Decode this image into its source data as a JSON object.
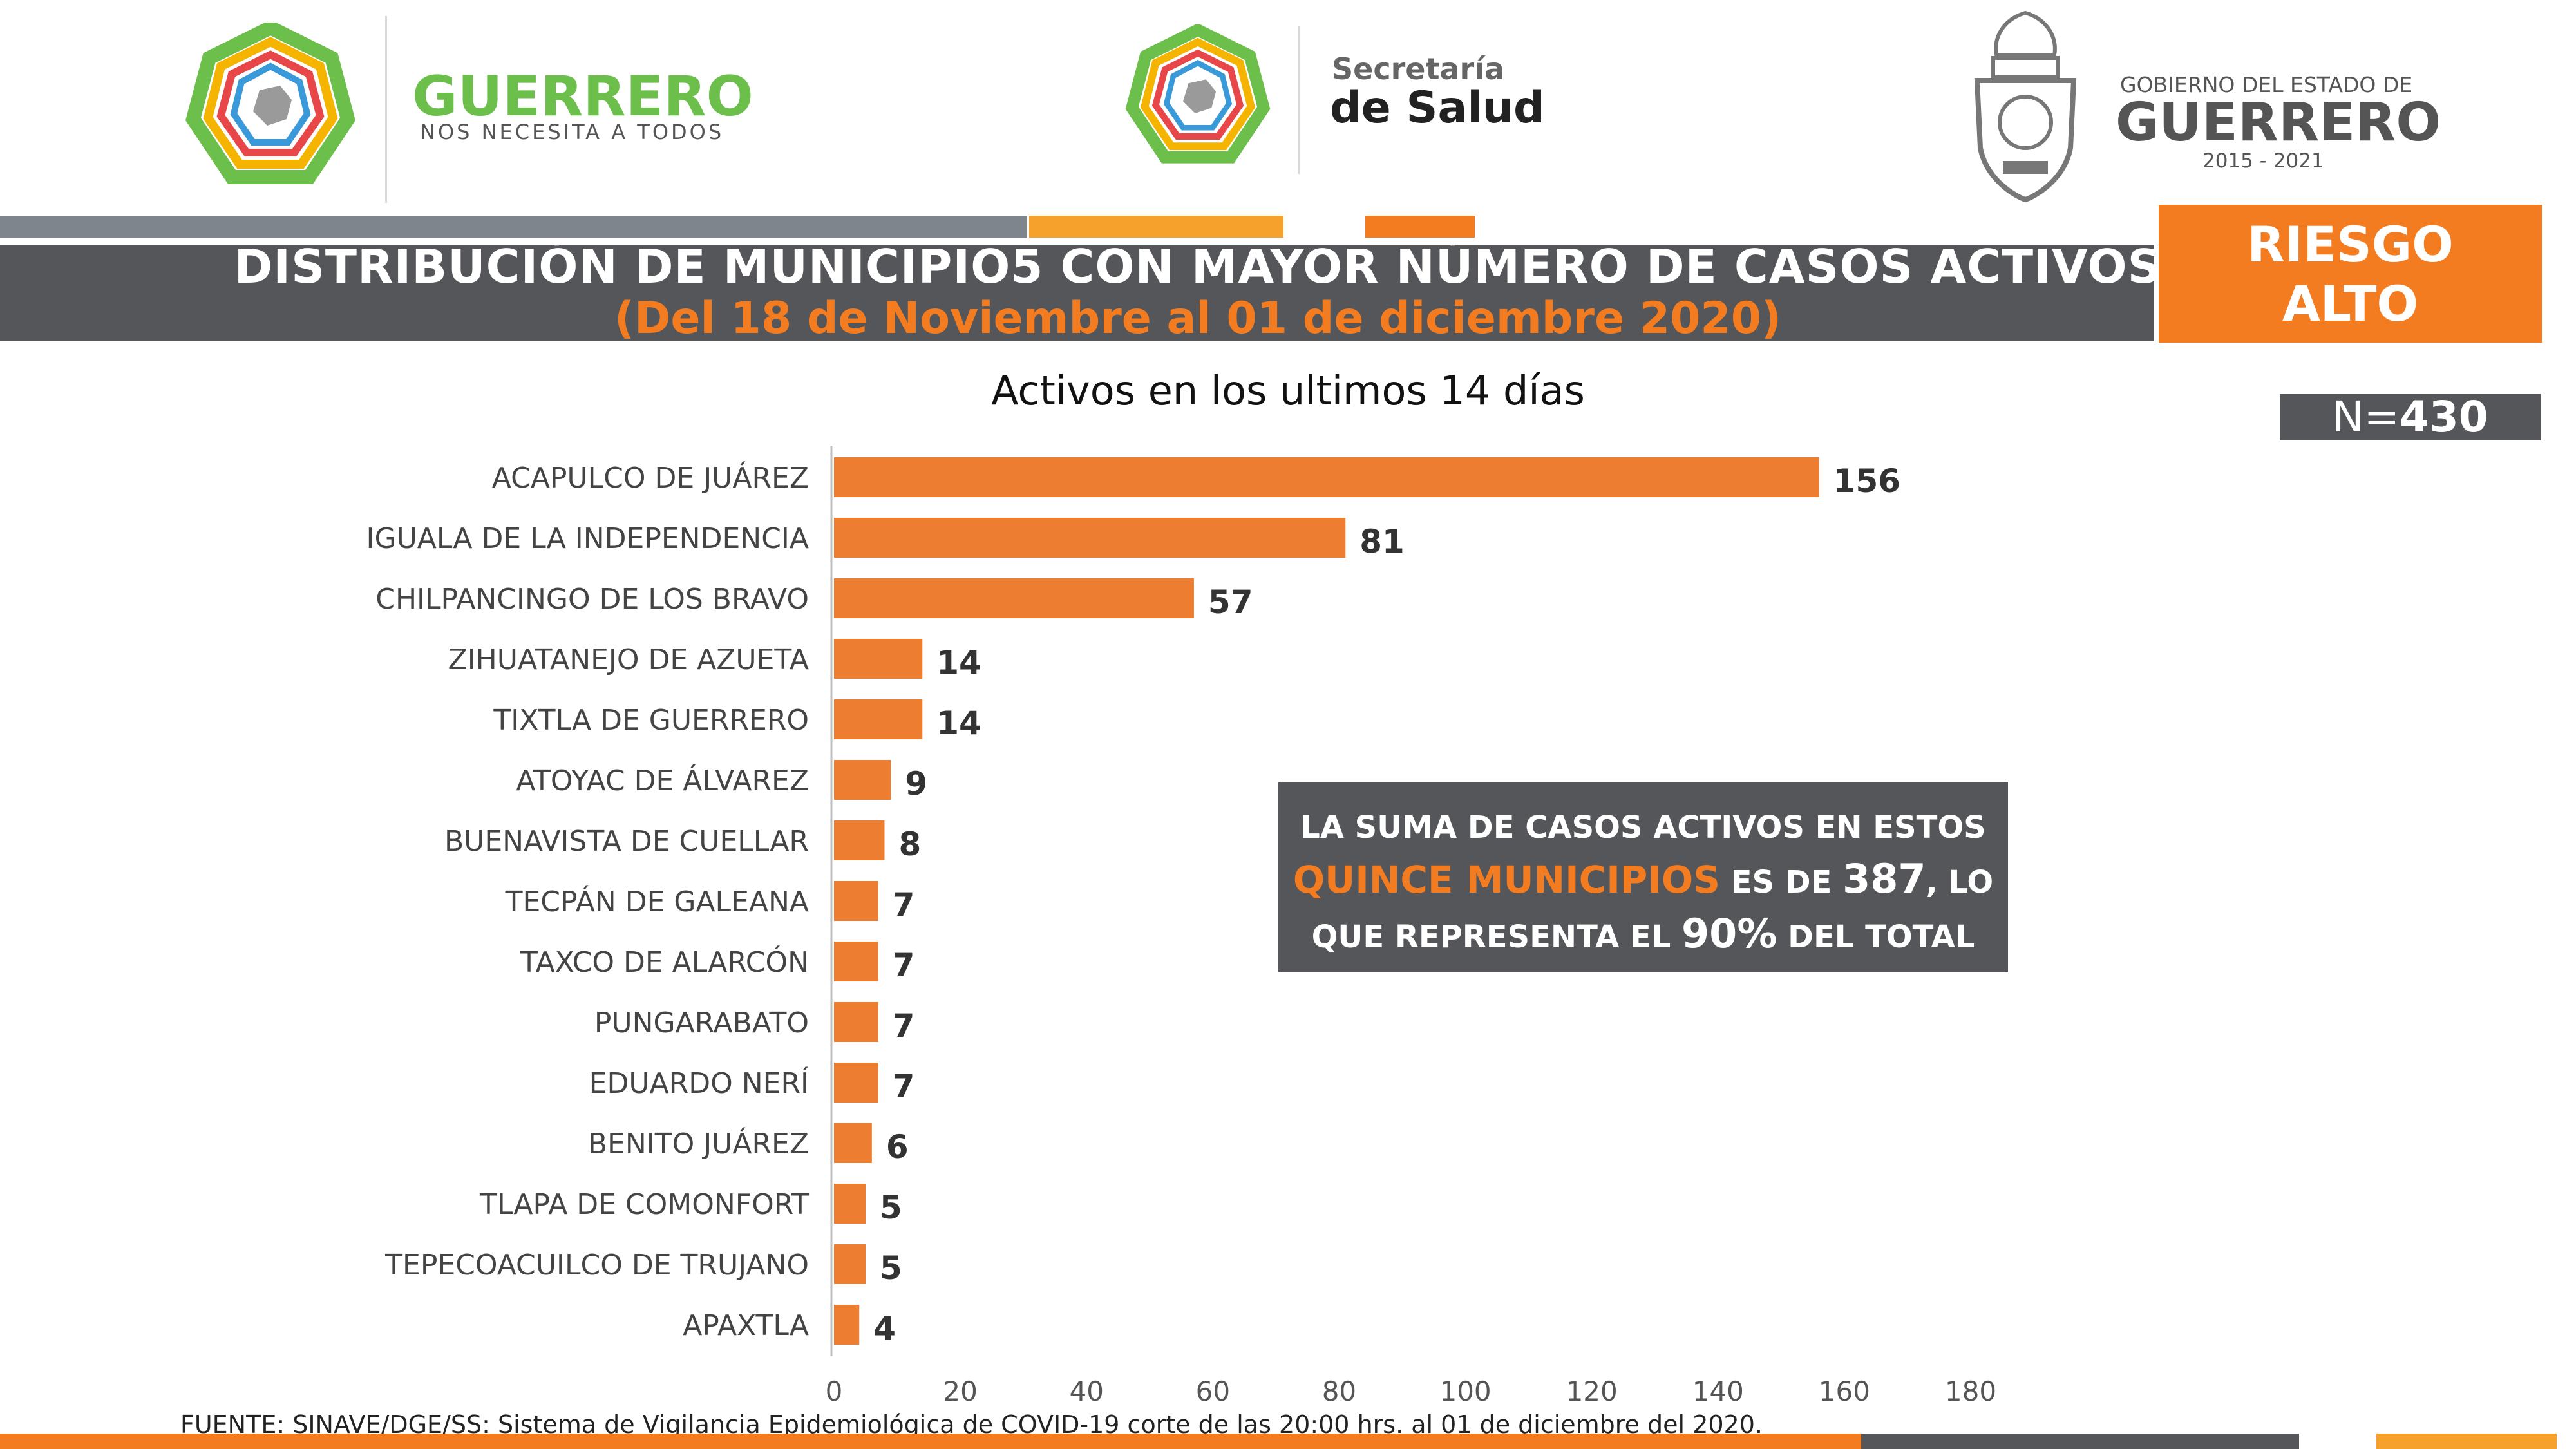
{
  "header": {
    "left_brand": "GUERRERO",
    "left_slogan": "NOS NECESITA A TODOS",
    "center_top": "Secretaría",
    "center_bottom": "de Salud",
    "right_top": "GOBIERNO DEL ESTADO DE",
    "right_brand": "GUERRERO",
    "right_years": "2015 - 2021"
  },
  "title": {
    "line1": "DISTRIBUCIÓN DE MUNICIPIO5 CON MAYOR NÚMERO DE  CASOS ACTIVOS",
    "line2": "(Del 18 de Noviembre al 01 de diciembre 2020)"
  },
  "risk": {
    "line1": "RIESGO",
    "line2": "ALTO"
  },
  "n_label": {
    "prefix": "N=",
    "value": "430"
  },
  "summary": {
    "line1": "LA SUMA DE CASOS ACTIVOS EN ESTOS",
    "line2a": "QUINCE MUNICIPIOS",
    "line2b": " ES DE ",
    "line2c": "387",
    "line2d": ", LO",
    "line3a": "QUE REPRESENTA EL ",
    "line3b": "90%",
    "line3c": " DEL TOTAL"
  },
  "source": "FUENTE: SINAVE/DGE/SS: Sistema de Vigilancia Epidemiológica de COVID-19 corte de las 20:00 hrs. al 01 de diciembre del 2020.",
  "colors": {
    "bar": "#ed7d31",
    "orange": "#f47c20",
    "gray": "#55565a"
  },
  "chart_data": {
    "type": "bar",
    "orientation": "horizontal",
    "title": "Activos en los ultimos 14 días",
    "categories": [
      "ACAPULCO DE JUÁREZ",
      "IGUALA DE LA INDEPENDENCIA",
      "CHILPANCINGO DE LOS BRAVO",
      "ZIHUATANEJO DE AZUETA",
      "TIXTLA DE GUERRERO",
      "ATOYAC DE ÁLVAREZ",
      "BUENAVISTA DE CUELLAR",
      "TECPÁN DE GALEANA",
      "TAXCO DE ALARCÓN",
      "PUNGARABATO",
      "EDUARDO NERÍ",
      "BENITO JUÁREZ",
      "TLAPA DE COMONFORT",
      "TEPECOACUILCO DE TRUJANO",
      "APAXTLA"
    ],
    "values": [
      156,
      81,
      57,
      14,
      14,
      9,
      8,
      7,
      7,
      7,
      7,
      6,
      5,
      5,
      4
    ],
    "xlim": [
      0,
      180
    ],
    "xticks": [
      0,
      20,
      40,
      60,
      80,
      100,
      120,
      140,
      160,
      180
    ],
    "grid": false,
    "data_labels": true
  }
}
